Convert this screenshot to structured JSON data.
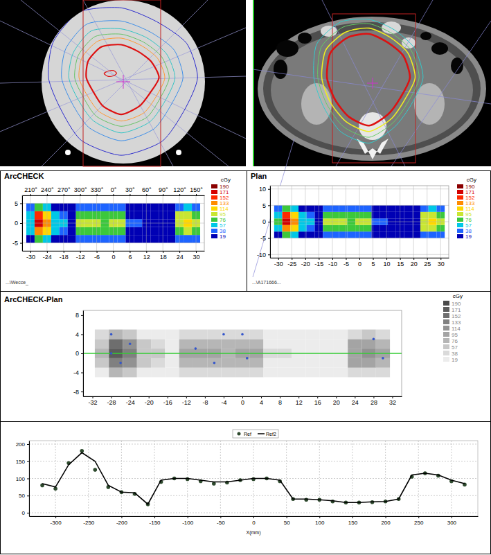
{
  "chart_data": [
    {
      "type": "heatmap",
      "title": "ArcCHECK",
      "x": [
        -30,
        -27,
        -24,
        -21,
        -18,
        -15,
        -12,
        -9,
        -6,
        -3,
        0,
        3,
        6,
        9,
        12,
        15,
        18,
        21,
        24,
        27,
        30
      ],
      "y": [
        -4,
        -2,
        0,
        2,
        4
      ],
      "cells": [
        [
          34,
          79,
          63,
          32,
          26,
          14,
          43,
          45,
          43,
          41,
          45,
          44,
          18,
          18,
          16,
          14,
          14,
          16,
          50,
          52,
          43
        ],
        [
          64,
          149,
          119,
          60,
          49,
          26,
          81,
          85,
          81,
          77,
          85,
          83,
          34,
          34,
          30,
          26,
          27,
          30,
          94,
          98,
          81
        ],
        [
          75,
          175,
          140,
          70,
          58,
          30,
          95,
          100,
          95,
          90,
          100,
          98,
          40,
          40,
          35,
          30,
          32,
          35,
          110,
          115,
          95
        ],
        [
          68,
          158,
          126,
          63,
          52,
          27,
          86,
          90,
          86,
          81,
          90,
          88,
          36,
          36,
          32,
          27,
          29,
          32,
          99,
          104,
          86
        ],
        [
          38,
          88,
          70,
          35,
          29,
          15,
          48,
          50,
          48,
          45,
          50,
          49,
          20,
          20,
          18,
          15,
          16,
          18,
          55,
          58,
          48
        ]
      ],
      "xlim": [
        -33,
        33
      ],
      "xticks": [
        -30,
        -24,
        -18,
        -12,
        -6,
        0,
        6,
        12,
        18,
        24,
        30
      ],
      "ylim": [
        -7,
        7
      ],
      "yticks": [
        5,
        0,
        -5
      ],
      "top_ticks": [
        {
          "value": -30,
          "label": "210°"
        },
        {
          "value": -24,
          "label": "240°"
        },
        {
          "value": -18,
          "label": "270°"
        },
        {
          "value": -12,
          "label": "300°"
        },
        {
          "value": -6,
          "label": "330°"
        },
        {
          "value": 0,
          "label": "0°"
        },
        {
          "value": 6,
          "label": "30°"
        },
        {
          "value": 12,
          "label": "60°"
        },
        {
          "value": 18,
          "label": "90°"
        },
        {
          "value": 24,
          "label": "120°"
        },
        {
          "value": 30,
          "label": "150°"
        }
      ],
      "grid": true,
      "colorbar": {
        "title": "cGy",
        "ticks": [
          190,
          171,
          152,
          133,
          114,
          95,
          76,
          57,
          38,
          19
        ],
        "colors": [
          "#8b0000",
          "#d40000",
          "#ff2a00",
          "#ff8c00",
          "#ffd700",
          "#c8e632",
          "#3cc83c",
          "#00c8e6",
          "#1e64ff",
          "#0000b4"
        ]
      },
      "footer": "...\\Wecce_"
    },
    {
      "type": "heatmap",
      "title": "Plan",
      "x": [
        -30,
        -27,
        -24,
        -21,
        -18,
        -15,
        -12,
        -9,
        -6,
        -3,
        0,
        3,
        6,
        9,
        12,
        15,
        18,
        21,
        24,
        27,
        30
      ],
      "y": [
        -4,
        -2,
        0,
        2,
        4
      ],
      "cells": [
        [
          35,
          80,
          62,
          32,
          27,
          14,
          44,
          46,
          43,
          41,
          46,
          44,
          18,
          18,
          16,
          14,
          15,
          16,
          51,
          53,
          44
        ],
        [
          65,
          150,
          118,
          61,
          50,
          26,
          82,
          86,
          81,
          78,
          86,
          84,
          34,
          34,
          30,
          26,
          28,
          30,
          95,
          99,
          82
        ],
        [
          76,
          178,
          138,
          71,
          58,
          31,
          96,
          101,
          95,
          91,
          101,
          99,
          40,
          40,
          35,
          30,
          33,
          35,
          111,
          116,
          96
        ],
        [
          69,
          160,
          125,
          64,
          52,
          28,
          87,
          91,
          86,
          82,
          91,
          89,
          36,
          36,
          32,
          28,
          29,
          32,
          100,
          105,
          87
        ],
        [
          39,
          89,
          69,
          36,
          29,
          16,
          49,
          51,
          48,
          46,
          51,
          50,
          20,
          20,
          18,
          16,
          16,
          18,
          56,
          59,
          49
        ]
      ],
      "xlim": [
        -33,
        33
      ],
      "xticks": [
        -30,
        -25,
        -20,
        -15,
        -10,
        -5,
        0,
        5,
        10,
        15,
        20,
        25,
        30
      ],
      "ylim": [
        -11,
        11
      ],
      "yticks": [
        10,
        5,
        0,
        -5,
        -10
      ],
      "grid": true,
      "colorbar": {
        "title": "cGy",
        "ticks": [
          190,
          171,
          152,
          133,
          114,
          95,
          76,
          57,
          38,
          19
        ],
        "colors": [
          "#8b0000",
          "#d40000",
          "#ff2a00",
          "#ff8c00",
          "#ffd700",
          "#c8e632",
          "#3cc83c",
          "#00c8e6",
          "#1e64ff",
          "#0000b4"
        ]
      },
      "footer": "...\\A171666..."
    },
    {
      "type": "heatmap",
      "title": "ArcCHECK-Plan",
      "x": [
        -30,
        -27,
        -24,
        -21,
        -18,
        -15,
        -12,
        -9,
        -6,
        -3,
        0,
        3,
        6,
        9,
        12,
        15,
        18,
        21,
        24,
        27,
        30
      ],
      "y": [
        -4,
        -2,
        0,
        2,
        4
      ],
      "cells": [
        [
          35,
          80,
          62,
          32,
          27,
          14,
          44,
          46,
          43,
          41,
          46,
          44,
          18,
          18,
          16,
          14,
          15,
          16,
          51,
          53,
          44
        ],
        [
          65,
          150,
          118,
          61,
          50,
          26,
          82,
          86,
          81,
          78,
          86,
          84,
          34,
          34,
          30,
          26,
          28,
          30,
          95,
          99,
          82
        ],
        [
          76,
          178,
          138,
          71,
          58,
          31,
          96,
          101,
          95,
          91,
          101,
          99,
          40,
          40,
          35,
          30,
          33,
          35,
          111,
          116,
          96
        ],
        [
          69,
          160,
          125,
          64,
          52,
          28,
          87,
          91,
          86,
          82,
          91,
          89,
          36,
          36,
          32,
          28,
          29,
          32,
          100,
          105,
          87
        ],
        [
          39,
          89,
          69,
          36,
          29,
          16,
          49,
          51,
          48,
          46,
          51,
          50,
          20,
          20,
          18,
          16,
          16,
          18,
          56,
          59,
          49
        ]
      ],
      "xlim": [
        -34,
        34
      ],
      "xticks": [
        -32,
        -28,
        -24,
        -20,
        -16,
        -12,
        -8,
        -4,
        0,
        4,
        8,
        12,
        16,
        20,
        24,
        28,
        32
      ],
      "ylim": [
        -9,
        9
      ],
      "yticks": [
        8,
        4,
        0,
        -4,
        -8
      ],
      "grid": false,
      "failed_points": {
        "x": [
          -28,
          -28,
          -26,
          -24,
          -6,
          -4,
          0,
          1,
          28,
          30,
          -10
        ],
        "y": [
          4,
          0,
          -2,
          2,
          -2,
          4,
          4,
          -1,
          3,
          -1,
          1
        ],
        "color": "#3355cc"
      },
      "profile": {
        "y": 0,
        "color": "#33cc33"
      },
      "colorbar": {
        "title": "cGy",
        "ticks": [
          190,
          171,
          152,
          133,
          114,
          95,
          76,
          57,
          38,
          19
        ],
        "colors": [
          "#4a4a4a",
          "#5c5c5c",
          "#6e6e6e",
          "#808080",
          "#929292",
          "#a4a4a4",
          "#b6b6b6",
          "#c8c8c8",
          "#dadada",
          "#ececec"
        ]
      }
    },
    {
      "type": "line",
      "x": [
        -320,
        -300,
        -280,
        -260,
        -240,
        -220,
        -200,
        -180,
        -160,
        -140,
        -120,
        -100,
        -80,
        -60,
        -40,
        -20,
        0,
        20,
        40,
        60,
        80,
        100,
        120,
        140,
        160,
        180,
        200,
        220,
        240,
        260,
        280,
        300,
        320
      ],
      "series": [
        {
          "name": "Ref",
          "type": "scatter",
          "marker": "circle",
          "color": "#2e4a2e",
          "values": [
            80,
            70,
            145,
            180,
            125,
            75,
            60,
            55,
            25,
            90,
            100,
            98,
            92,
            85,
            88,
            95,
            98,
            100,
            92,
            40,
            38,
            38,
            33,
            30,
            30,
            31,
            33,
            40,
            105,
            115,
            108,
            92,
            82
          ]
        },
        {
          "name": "Ref2",
          "type": "line",
          "line_style": "solid",
          "color": "#000000",
          "values": [
            85,
            75,
            140,
            175,
            150,
            80,
            60,
            58,
            25,
            95,
            100,
            100,
            95,
            90,
            90,
            95,
            100,
            100,
            95,
            40,
            40,
            38,
            35,
            30,
            30,
            32,
            33,
            40,
            110,
            115,
            110,
            95,
            85
          ]
        }
      ],
      "xlim": [
        -340,
        340
      ],
      "xticks": [
        -300,
        -250,
        -200,
        -150,
        -100,
        -50,
        0,
        50,
        100,
        150,
        200,
        250,
        300
      ],
      "ylim": [
        -10,
        210
      ],
      "yticks": [
        0,
        50,
        100,
        150,
        200
      ],
      "x_label": "X(mm)",
      "grid": true,
      "legend": "top"
    }
  ]
}
